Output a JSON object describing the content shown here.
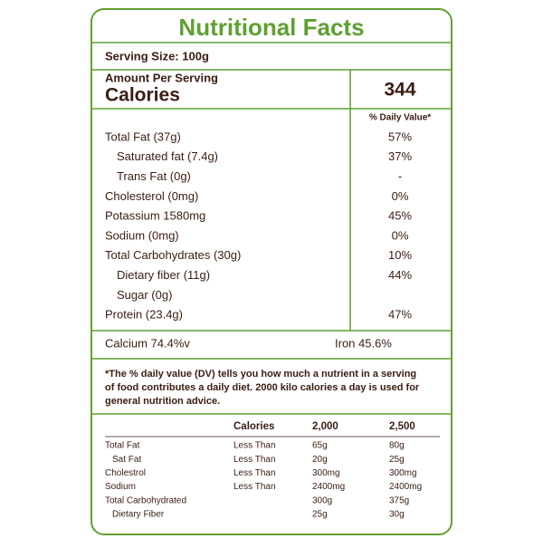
{
  "header": {
    "title": "Nutritional Facts",
    "serving_size": "Serving Size: 100g"
  },
  "calories": {
    "amount_per_serving": "Amount Per Serving",
    "label": "Calories",
    "value": "344"
  },
  "daily_value_header": "% Daily Value*",
  "nutrients": [
    {
      "label": "Total Fat (37g)",
      "dv": "57%"
    },
    {
      "label": "Saturated fat (7.4g)",
      "dv": "37%"
    },
    {
      "label": "Trans Fat (0g)",
      "dv": "-"
    },
    {
      "label": "Cholesterol (0mg)",
      "dv": "0%"
    },
    {
      "label": "Potassium 1580mg",
      "dv": "45%"
    },
    {
      "label": "Sodium (0mg)",
      "dv": "0%"
    },
    {
      "label": "Total Carbohydrates  (30g)",
      "dv": "10%"
    },
    {
      "label": "Dietary fiber (11g)",
      "dv": "44%"
    },
    {
      "label": "Sugar (0g)"
    },
    {
      "label": "Protein (23.4g)",
      "dv": "47%"
    }
  ],
  "minerals": [
    "Calcium 74.4%v",
    "Iron 45.6%"
  ],
  "footnote": [
    "*The % daily value (DV) tells you how much a nutrient in a serving",
    "of food contributes a daily diet. 2000 kilo calories a day is used for",
    "general nutrition advice."
  ],
  "table": {
    "header": [
      "Calories",
      "2,000",
      "2,500"
    ],
    "rows": [
      [
        "Total Fat",
        "Less Than",
        "65g",
        "80g"
      ],
      [
        "Sat Fat",
        "Less Than",
        "20g",
        "25g"
      ],
      [
        "Cholestrol",
        "Less Than",
        "300mg",
        "300mg"
      ],
      [
        "Sodium",
        "Less Than",
        "2400mg",
        "2400mg"
      ],
      [
        "Total Carbohydrated",
        null,
        "300g",
        "375g"
      ],
      [
        "Dietary Fiber",
        null,
        "25g",
        "30g"
      ]
    ]
  }
}
